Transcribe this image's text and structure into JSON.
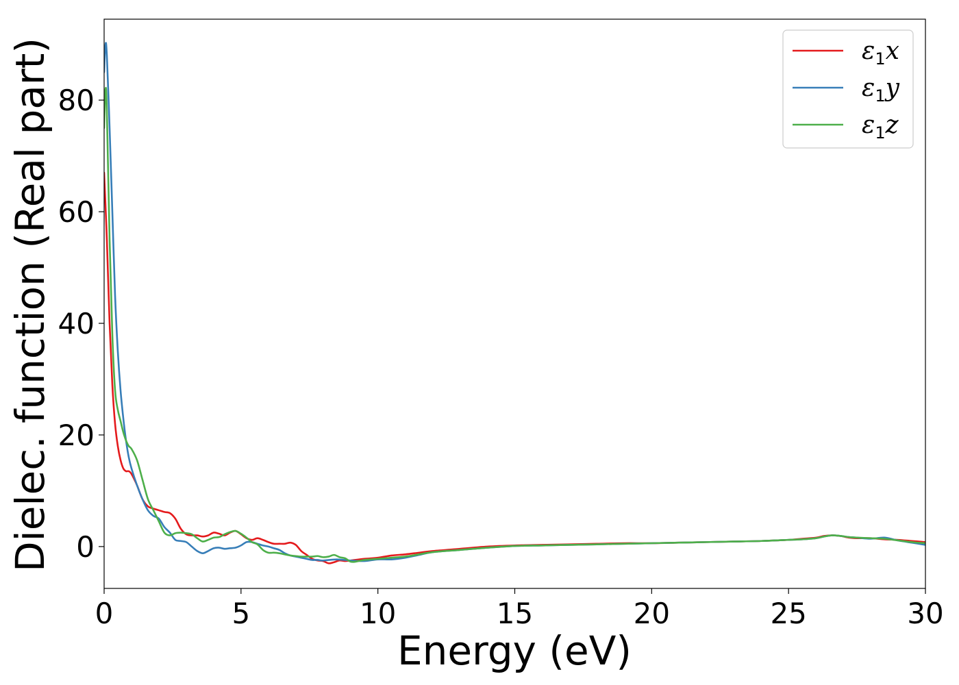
{
  "chart_data": {
    "type": "line",
    "xlabel": "Energy (eV)",
    "ylabel": "Dielec. function (Real part)",
    "xlim": [
      0,
      30
    ],
    "ylim": [
      -7.5,
      94.5
    ],
    "xticks": [
      0,
      5,
      10,
      15,
      20,
      25,
      30
    ],
    "yticks": [
      0,
      20,
      40,
      60,
      80
    ],
    "grid": false,
    "legend_position": "top-right",
    "series": [
      {
        "name": "ε1x",
        "legend": {
          "sym": "ε",
          "sub": "1",
          "var": "x"
        },
        "color": "#e41a1c",
        "x": [
          0,
          0.1,
          0.2,
          0.3,
          0.4,
          0.5,
          0.6,
          0.7,
          0.8,
          0.9,
          1.0,
          1.2,
          1.4,
          1.6,
          1.8,
          2.0,
          2.2,
          2.4,
          2.6,
          2.8,
          3.0,
          3.2,
          3.4,
          3.6,
          3.8,
          4.0,
          4.2,
          4.4,
          4.6,
          4.8,
          5.0,
          5.2,
          5.4,
          5.6,
          5.8,
          6.0,
          6.2,
          6.4,
          6.6,
          6.8,
          7.0,
          7.2,
          7.4,
          7.6,
          7.8,
          8.0,
          8.2,
          8.4,
          8.6,
          8.8,
          9.0,
          9.5,
          10.0,
          10.5,
          11.0,
          11.5,
          12.0,
          13,
          14,
          15,
          16,
          17,
          18,
          19,
          20,
          21,
          22,
          23,
          24,
          25,
          25.5,
          26,
          26.3,
          26.6,
          26.9,
          27.2,
          27.5,
          28,
          28.5,
          29,
          29.5,
          30
        ],
        "y": [
          67,
          55,
          40,
          29,
          22,
          18,
          15.5,
          14,
          13.5,
          13.5,
          13,
          11,
          8.5,
          7.2,
          6.8,
          6.5,
          6.2,
          6,
          5,
          3.2,
          2.2,
          2,
          2,
          1.8,
          2,
          2.5,
          2.3,
          2,
          2.5,
          2.8,
          2.2,
          1.5,
          1.2,
          1.5,
          1.2,
          0.8,
          0.5,
          0.5,
          0.5,
          0.7,
          0.3,
          -0.8,
          -1.5,
          -2.2,
          -2.5,
          -2.6,
          -3,
          -2.8,
          -2.5,
          -2.6,
          -2.5,
          -2.2,
          -2,
          -1.6,
          -1.4,
          -1.1,
          -0.8,
          -0.4,
          0,
          0.2,
          0.3,
          0.4,
          0.5,
          0.6,
          0.6,
          0.7,
          0.8,
          0.9,
          1.0,
          1.2,
          1.4,
          1.6,
          1.9,
          2.0,
          1.9,
          1.6,
          1.5,
          1.5,
          1.3,
          1.2,
          1.0,
          0.8
        ]
      },
      {
        "name": "ε1y",
        "legend": {
          "sym": "ε",
          "sub": "1",
          "var": "y"
        },
        "color": "#377eb8",
        "x": [
          0,
          0.05,
          0.1,
          0.2,
          0.3,
          0.4,
          0.5,
          0.6,
          0.7,
          0.8,
          0.9,
          1.0,
          1.2,
          1.4,
          1.6,
          1.8,
          2.0,
          2.2,
          2.4,
          2.6,
          2.8,
          3.0,
          3.2,
          3.4,
          3.6,
          3.8,
          4.0,
          4.2,
          4.4,
          4.6,
          4.8,
          5.0,
          5.2,
          5.4,
          5.6,
          5.8,
          6.0,
          6.2,
          6.4,
          6.6,
          6.8,
          7.0,
          7.2,
          7.4,
          7.6,
          7.8,
          8.0,
          8.5,
          9.0,
          9.5,
          10.0,
          10.5,
          11.0,
          11.5,
          12.0,
          13,
          14,
          15,
          16,
          17,
          18,
          19,
          20,
          21,
          22,
          23,
          24,
          25,
          25.5,
          26,
          26.3,
          26.6,
          26.9,
          27.2,
          27.5,
          28,
          28.5,
          29,
          29.5,
          30
        ],
        "y": [
          85,
          90,
          88,
          75,
          60,
          45,
          35,
          28,
          23,
          19,
          16,
          14,
          11,
          8.5,
          6.5,
          5.5,
          5,
          3.5,
          2.5,
          1.2,
          1,
          0.8,
          0,
          -0.8,
          -1.2,
          -0.8,
          -0.3,
          -0.2,
          -0.4,
          -0.3,
          -0.2,
          0.2,
          0.8,
          0.8,
          0.5,
          0.2,
          0,
          -0.3,
          -0.6,
          -1.2,
          -1.6,
          -1.8,
          -2,
          -2.2,
          -2.4,
          -2.4,
          -2.5,
          -2.3,
          -2.5,
          -2.6,
          -2.3,
          -2.3,
          -2.0,
          -1.5,
          -1.0,
          -0.6,
          -0.2,
          0.1,
          0.2,
          0.3,
          0.4,
          0.5,
          0.6,
          0.7,
          0.8,
          0.9,
          1.0,
          1.2,
          1.3,
          1.5,
          1.8,
          2.0,
          1.9,
          1.7,
          1.6,
          1.4,
          1.6,
          1.1,
          0.7,
          0.3
        ]
      },
      {
        "name": "ε1z",
        "legend": {
          "sym": "ε",
          "sub": "1",
          "var": "z"
        },
        "color": "#4daf4a",
        "x": [
          0,
          0.05,
          0.1,
          0.2,
          0.3,
          0.4,
          0.5,
          0.6,
          0.7,
          0.8,
          0.9,
          1.0,
          1.2,
          1.4,
          1.6,
          1.8,
          2.0,
          2.2,
          2.4,
          2.6,
          2.8,
          3.0,
          3.2,
          3.4,
          3.6,
          3.8,
          4.0,
          4.2,
          4.4,
          4.6,
          4.8,
          5.0,
          5.2,
          5.4,
          5.6,
          5.8,
          6.0,
          6.2,
          6.4,
          6.6,
          6.8,
          7.0,
          7.2,
          7.4,
          7.6,
          7.8,
          8.0,
          8.2,
          8.4,
          8.6,
          8.8,
          9.0,
          9.2,
          9.5,
          10.0,
          10.5,
          11.0,
          11.5,
          12.0,
          13,
          14,
          15,
          16,
          17,
          18,
          19,
          20,
          21,
          22,
          23,
          24,
          25,
          25.5,
          26,
          26.3,
          26.6,
          26.9,
          27.2,
          27.5,
          28,
          28.5,
          29,
          29.5,
          30
        ],
        "y": [
          75,
          82,
          78,
          55,
          38,
          28,
          24.5,
          22.5,
          20.5,
          19,
          18,
          17.5,
          15.5,
          12,
          8.5,
          6.5,
          4.5,
          2.5,
          2,
          2.4,
          2.5,
          2.4,
          2.2,
          1.5,
          0.9,
          1.2,
          1.6,
          1.7,
          2.2,
          2.6,
          2.8,
          2.3,
          1.6,
          0.8,
          0.4,
          -0.6,
          -1.1,
          -1.1,
          -1.2,
          -1.4,
          -1.6,
          -1.7,
          -1.8,
          -1.8,
          -1.8,
          -1.7,
          -1.9,
          -1.8,
          -1.5,
          -1.9,
          -2.1,
          -2.7,
          -2.7,
          -2.4,
          -2.2,
          -2.0,
          -1.8,
          -1.4,
          -1.0,
          -0.6,
          -0.2,
          0.1,
          0.2,
          0.3,
          0.4,
          0.5,
          0.6,
          0.7,
          0.8,
          0.9,
          1.0,
          1.2,
          1.3,
          1.5,
          1.8,
          2.0,
          1.9,
          1.7,
          1.6,
          1.5,
          1.4,
          1.1,
          0.8,
          0.6
        ]
      }
    ]
  }
}
